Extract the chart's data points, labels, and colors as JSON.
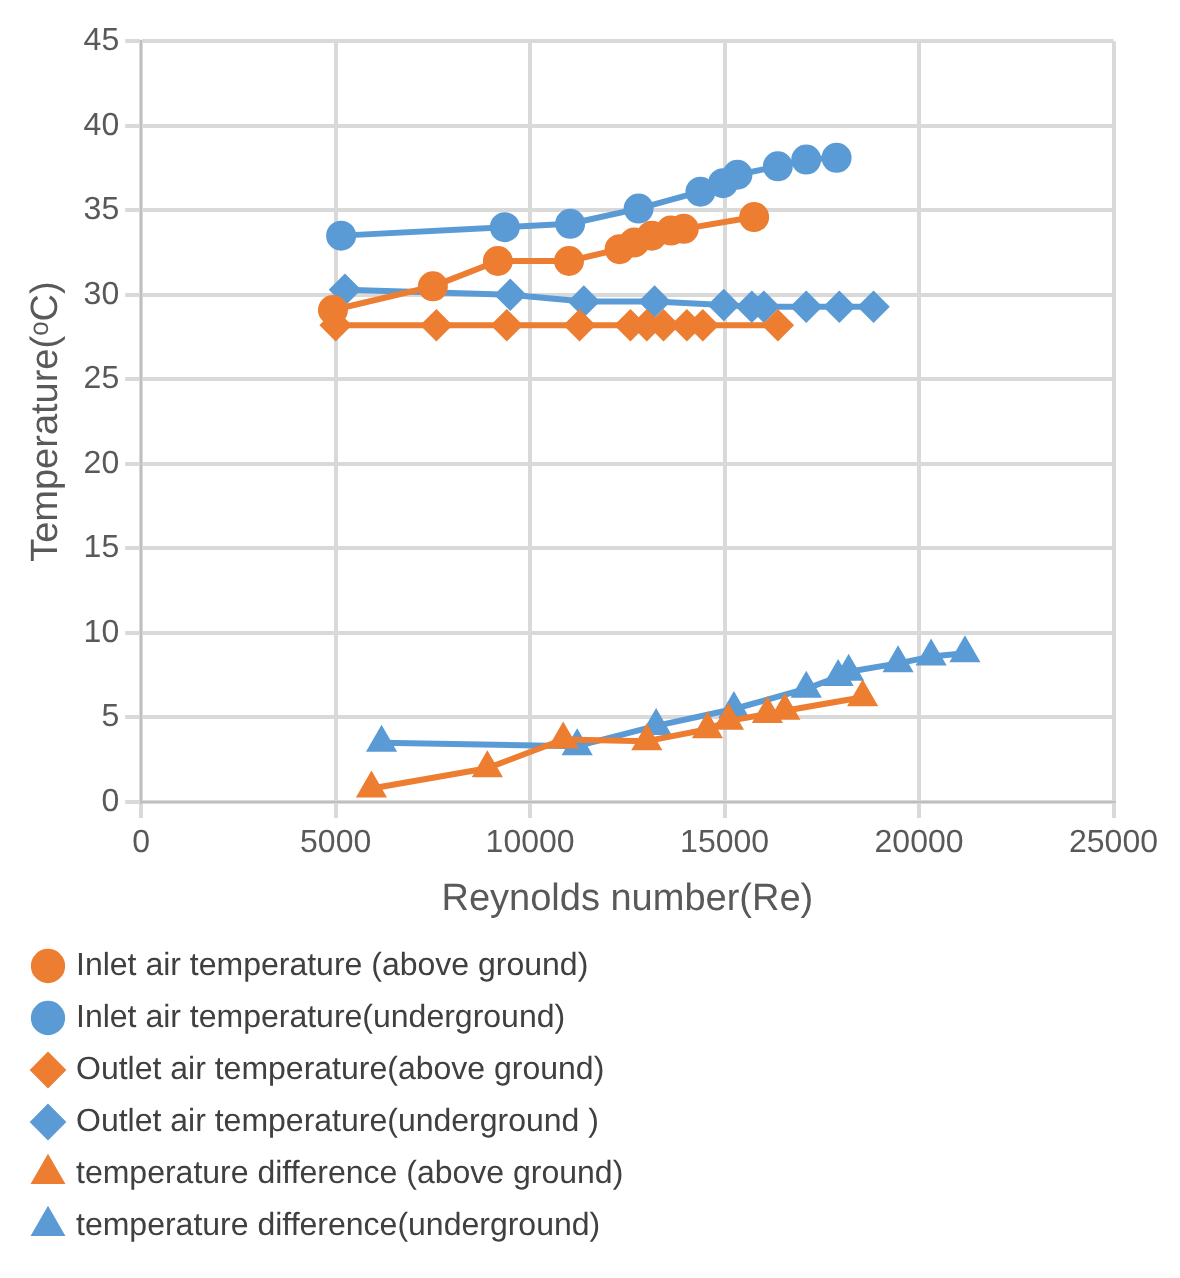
{
  "chart_data": {
    "type": "line",
    "xlabel": "Reynolds number(Re)",
    "ylabel": "Temperature(ᵒC)",
    "xlim": [
      0,
      25000
    ],
    "xticks": [
      0,
      5000,
      10000,
      15000,
      20000,
      25000
    ],
    "ylim": [
      0,
      45
    ],
    "yticks": [
      0,
      5,
      10,
      15,
      20,
      25,
      30,
      35,
      40,
      45
    ],
    "grid": true,
    "legend": "bottom",
    "line_style": "solid",
    "series": [
      {
        "name": "Inlet air temperature (above ground)",
        "color": "#ed7d31",
        "marker": "circle",
        "x": [
          4930,
          7500,
          9170,
          11000,
          12300,
          12680,
          13130,
          13620,
          13950,
          15760
        ],
        "values": [
          29.1,
          30.5,
          32.0,
          32.0,
          32.7,
          33.1,
          33.5,
          33.8,
          33.9,
          34.6
        ]
      },
      {
        "name": "Inlet air temperature(underground)",
        "color": "#5b9bd5",
        "marker": "circle",
        "x": [
          5140,
          9350,
          11030,
          12790,
          14380,
          14960,
          15330,
          16370,
          17100,
          17880
        ],
        "values": [
          33.5,
          34.0,
          34.2,
          35.1,
          36.1,
          36.6,
          37.1,
          37.6,
          38.0,
          38.1
        ]
      },
      {
        "name": "Outlet air temperature(above ground)",
        "color": "#ed7d31",
        "marker": "diamond",
        "x": [
          5000,
          7590,
          9400,
          11270,
          12580,
          13000,
          13430,
          14030,
          14440,
          16370
        ],
        "values": [
          28.2,
          28.2,
          28.2,
          28.2,
          28.2,
          28.2,
          28.2,
          28.2,
          28.2,
          28.2
        ]
      },
      {
        "name": "Outlet air temperature(underground )",
        "color": "#5b9bd5",
        "marker": "diamond",
        "x": [
          5240,
          9490,
          11380,
          13200,
          14980,
          15700,
          16010,
          17100,
          17950,
          18830
        ],
        "values": [
          30.3,
          30.0,
          29.6,
          29.6,
          29.4,
          29.3,
          29.3,
          29.3,
          29.3,
          29.3
        ]
      },
      {
        "name": "temperature difference (above ground)",
        "color": "#ed7d31",
        "marker": "triangle",
        "x": [
          5920,
          8900,
          10850,
          13000,
          14560,
          15100,
          16100,
          16550,
          18550
        ],
        "values": [
          0.8,
          2.0,
          3.7,
          3.6,
          4.3,
          4.8,
          5.2,
          5.4,
          6.2
        ]
      },
      {
        "name": "temperature difference(underground)",
        "color": "#5b9bd5",
        "marker": "triangle",
        "x": [
          6180,
          11210,
          13240,
          15240,
          17100,
          17920,
          18190,
          19460,
          20310,
          21180
        ],
        "values": [
          3.5,
          3.3,
          4.5,
          5.5,
          6.7,
          7.4,
          7.7,
          8.2,
          8.6,
          8.8
        ]
      }
    ]
  }
}
